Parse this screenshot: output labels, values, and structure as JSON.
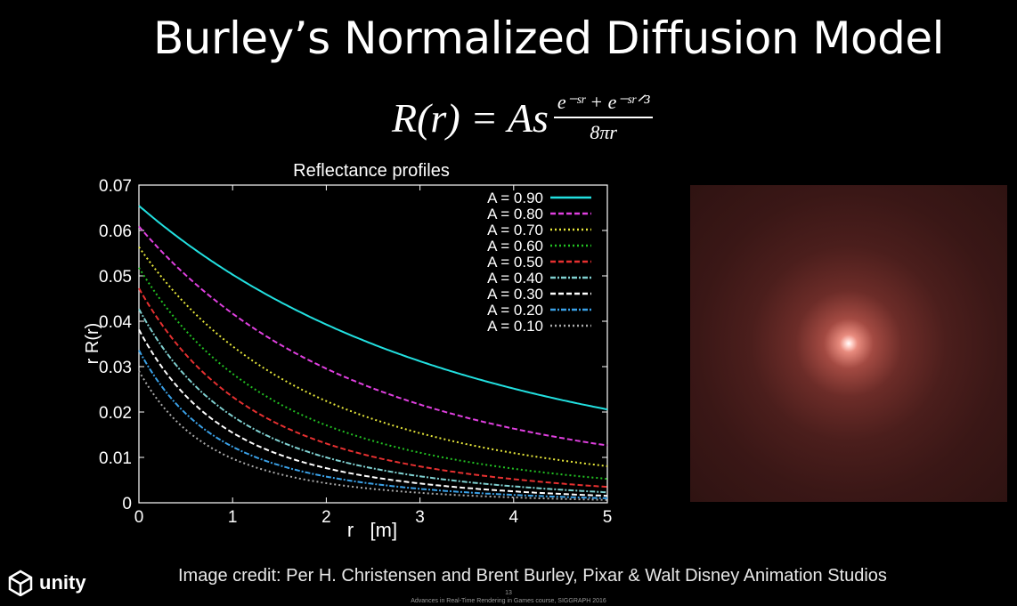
{
  "slide": {
    "title": "Burley’s Normalized Diffusion Model",
    "formula": {
      "lhs": "R(r) = As",
      "numerator": "e⁻ˢʳ + e⁻ˢʳᐟ³",
      "denominator": "8πr"
    },
    "credit": "Image credit: Per H. Christensen and Brent Burley, Pixar & Walt Disney Animation Studios",
    "logo_text": "unity",
    "footer_page": "13",
    "footer_text": "Advances in Real-Time Rendering in Games course, SIGGRAPH 2016"
  },
  "chart_data": {
    "type": "line",
    "title": "Reflectance profiles",
    "xlabel": "r   [m]",
    "ylabel": "r R(r)",
    "xlim": [
      0,
      5
    ],
    "ylim": [
      0,
      0.07
    ],
    "xticks": [
      "0",
      "1",
      "2",
      "3",
      "4",
      "5"
    ],
    "yticks": [
      "0",
      "0.01",
      "0.02",
      "0.03",
      "0.04",
      "0.05",
      "0.06",
      "0.07"
    ],
    "legend_position": "top-right",
    "grid": false,
    "series": [
      {
        "name": "A = 0.90",
        "A": 0.9,
        "color": "#22e0e0",
        "style": "solid"
      },
      {
        "name": "A = 0.80",
        "A": 0.8,
        "color": "#e040e0",
        "style": "dash"
      },
      {
        "name": "A = 0.70",
        "A": 0.7,
        "color": "#e6e63a",
        "style": "dot"
      },
      {
        "name": "A = 0.60",
        "A": 0.6,
        "color": "#22c022",
        "style": "dot"
      },
      {
        "name": "A = 0.50",
        "A": 0.5,
        "color": "#e63030",
        "style": "dash"
      },
      {
        "name": "A = 0.40",
        "A": 0.4,
        "color": "#7fd0d0",
        "style": "dashdot"
      },
      {
        "name": "A = 0.30",
        "A": 0.3,
        "color": "#ffffff",
        "style": "dash"
      },
      {
        "name": "A = 0.20",
        "A": 0.2,
        "color": "#3aa0e6",
        "style": "dashdot"
      },
      {
        "name": "A = 0.10",
        "A": 0.1,
        "color": "#aaaaaa",
        "style": "dot"
      }
    ]
  }
}
